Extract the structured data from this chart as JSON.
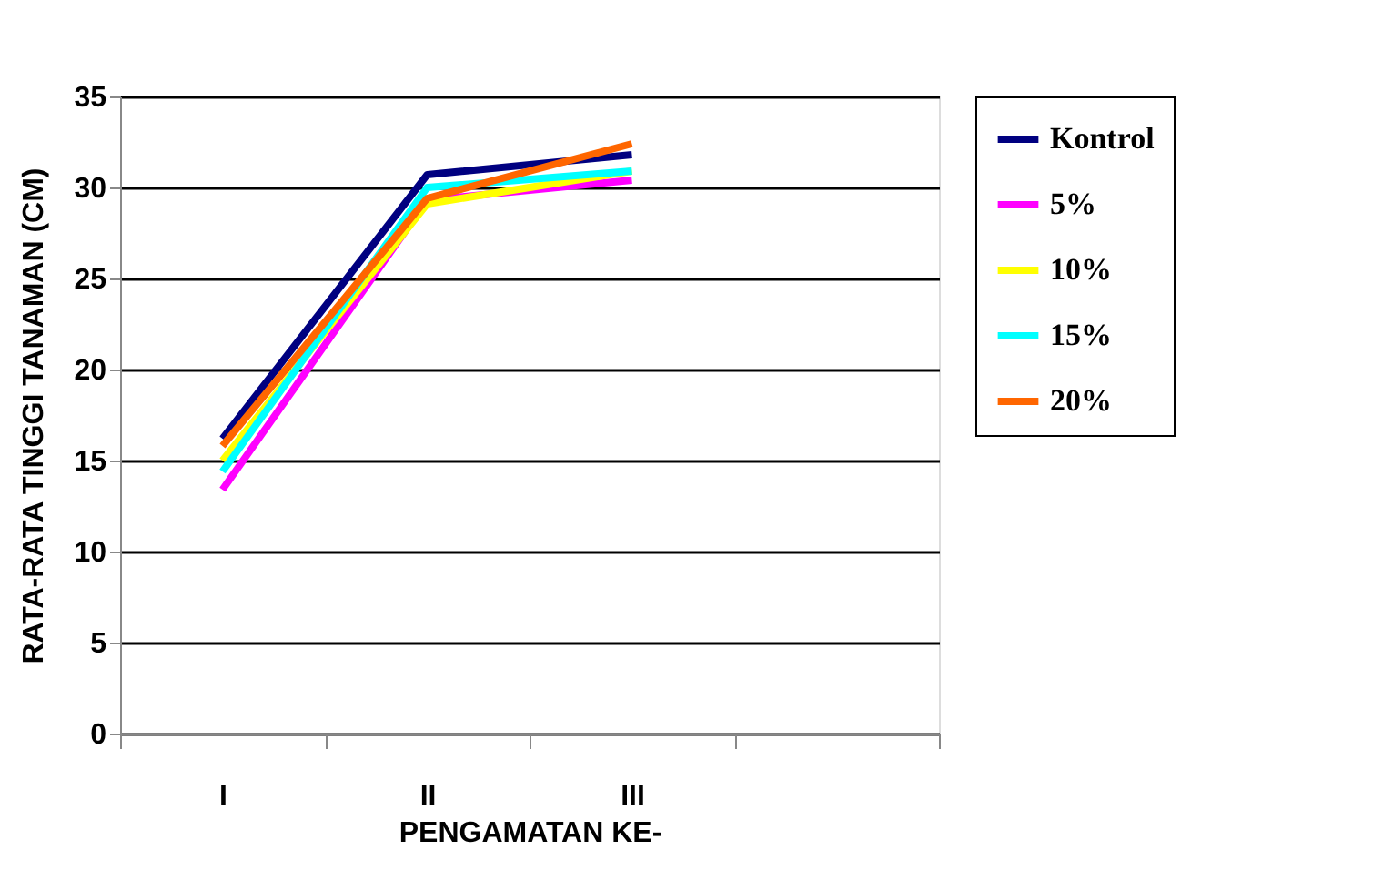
{
  "chart_data": {
    "type": "line",
    "xlabel": "PENGAMATAN KE-",
    "ylabel": "RATA-RATA TINGGI TANAMAN (CM)",
    "categories": [
      "I",
      "II",
      "III",
      null
    ],
    "series": [
      {
        "name": "Kontrol",
        "color": "#000080",
        "values": [
          16.2,
          30.7,
          31.8,
          null
        ]
      },
      {
        "name": "5%",
        "color": "#ff00ff",
        "values": [
          13.4,
          29.3,
          30.4,
          null
        ]
      },
      {
        "name": "10%",
        "color": "#ffff00",
        "values": [
          15.0,
          29.1,
          30.9,
          null
        ]
      },
      {
        "name": "15%",
        "color": "#00ffff",
        "values": [
          14.4,
          30.0,
          30.9,
          null
        ]
      },
      {
        "name": "20%",
        "color": "#ff6600",
        "values": [
          15.8,
          29.4,
          32.4,
          null
        ]
      }
    ],
    "ylim": [
      0,
      35
    ],
    "yticks": [
      0,
      5,
      10,
      15,
      20,
      25,
      30,
      35
    ],
    "grid": "y",
    "legend": "right",
    "marker": "none",
    "line_style": "solid"
  }
}
